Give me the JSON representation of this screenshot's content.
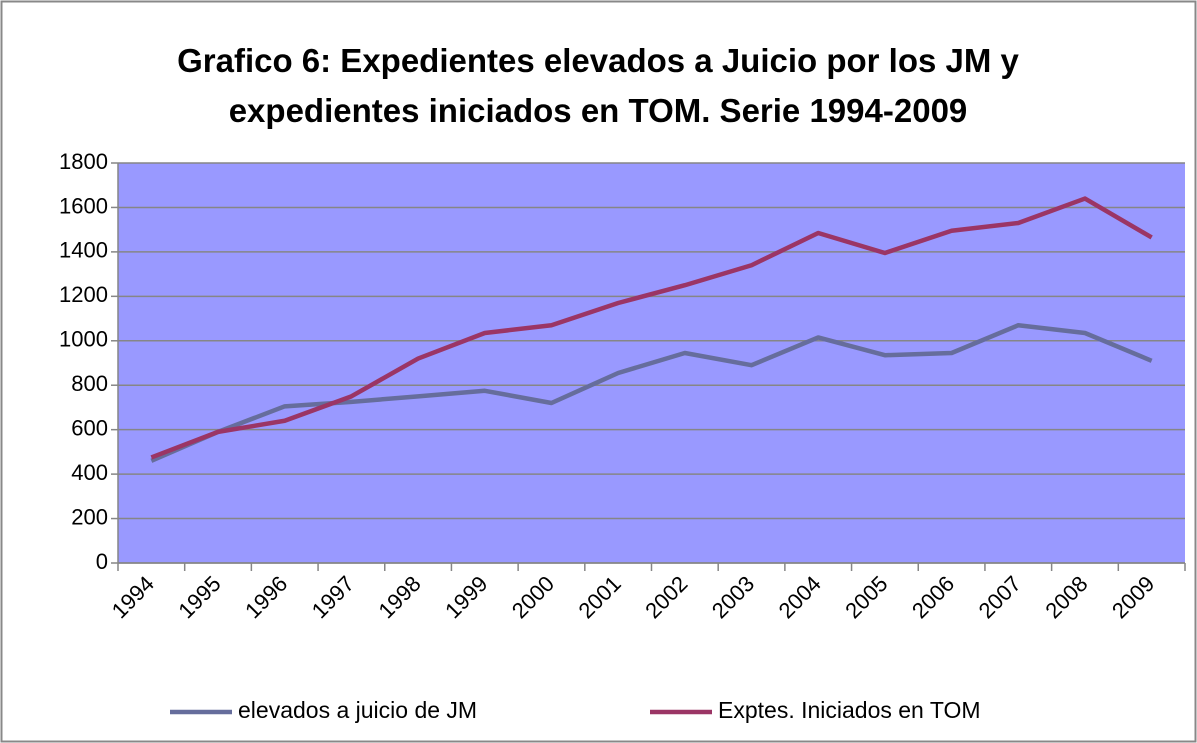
{
  "chart_data": {
    "type": "line",
    "title": [
      "Grafico 6: Expedientes elevados a Juicio por los JM y",
      "expedientes iniciados en TOM. Serie 1994-2009"
    ],
    "categories": [
      "1994",
      "1995",
      "1996",
      "1997",
      "1998",
      "1999",
      "2000",
      "2001",
      "2002",
      "2003",
      "2004",
      "2005",
      "2006",
      "2007",
      "2008",
      "2009"
    ],
    "series": [
      {
        "name": "elevados a juicio de JM",
        "color": "#666d9c",
        "values": [
          460,
          590,
          705,
          725,
          750,
          775,
          720,
          855,
          945,
          890,
          1015,
          935,
          945,
          1070,
          1035,
          910
        ]
      },
      {
        "name": "Exptes. Iniciados en TOM",
        "color": "#9b3565",
        "values": [
          475,
          590,
          640,
          750,
          920,
          1035,
          1070,
          1170,
          1250,
          1340,
          1485,
          1395,
          1495,
          1530,
          1640,
          1465
        ]
      }
    ],
    "ylim": [
      0,
      1800
    ],
    "yticks": [
      0,
      200,
      400,
      600,
      800,
      1000,
      1200,
      1400,
      1600,
      1800
    ],
    "grid": true,
    "plot_background": "#9999ff",
    "legend": "bottom"
  }
}
